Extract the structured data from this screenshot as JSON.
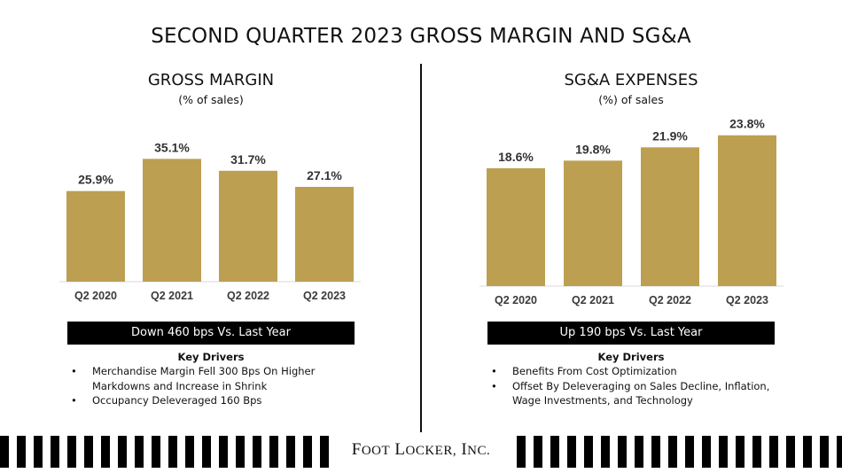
{
  "page_title": "SECOND QUARTER 2023 GROSS MARGIN AND SG&A",
  "chart_data": [
    {
      "type": "bar",
      "title": "GROSS MARGIN",
      "subtitle": "(% of sales)",
      "categories": [
        "Q2 2020",
        "Q2 2021",
        "Q2 2022",
        "Q2 2023"
      ],
      "values": [
        25.9,
        35.1,
        31.7,
        27.1
      ],
      "value_labels": [
        "25.9%",
        "35.1%",
        "31.7%",
        "27.1%"
      ],
      "bar_color": "#bd9f52",
      "ylim": [
        0,
        40
      ]
    },
    {
      "type": "bar",
      "title": "SG&A EXPENSES",
      "subtitle": "(%) of sales",
      "categories": [
        "Q2 2020",
        "Q2 2021",
        "Q2 2022",
        "Q2 2023"
      ],
      "values": [
        18.6,
        19.8,
        21.9,
        23.8
      ],
      "value_labels": [
        "18.6%",
        "19.8%",
        "21.9%",
        "23.8%"
      ],
      "bar_color": "#bd9f52",
      "ylim": [
        0,
        26
      ]
    }
  ],
  "left": {
    "banner": "Down 460 bps Vs. Last Year",
    "drivers_title": "Key Drivers",
    "drivers": [
      "Merchandise Margin Fell 300 Bps On Higher Markdowns and Increase in Shrink",
      "Occupancy Deleveraged 160 Bps"
    ]
  },
  "right": {
    "banner": "Up 190 bps Vs. Last Year",
    "drivers_title": "Key Drivers",
    "drivers": [
      "Benefits From Cost Optimization",
      "Offset By Deleveraging on Sales Decline, Inflation, Wage Investments, and Technology"
    ]
  },
  "footer": {
    "logo_first_initial": "F",
    "logo_first_rest": "OOT",
    "logo_second_initial": "L",
    "logo_second_rest": "OCKER,",
    "logo_third_initial": "I",
    "logo_third_rest": "NC."
  }
}
